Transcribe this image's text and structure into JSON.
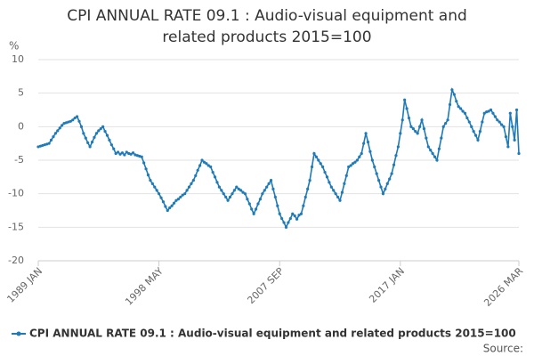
{
  "chart_data": {
    "type": "line",
    "title": "CPI ANNUAL RATE 09.1 : Audio-visual equipment and related products 2015=100",
    "y_label": "%",
    "source": "Source:",
    "legend": "bottom",
    "grid": true,
    "ylim": [
      -20,
      10
    ],
    "yticks": [
      -20,
      -15,
      -10,
      -5,
      0,
      5,
      10
    ],
    "categories": [
      "1989 JAN",
      null,
      null,
      null,
      null,
      null,
      null,
      null,
      null,
      null,
      null,
      null,
      null,
      null,
      null,
      null,
      null,
      null,
      null,
      null,
      null,
      null,
      null,
      null,
      null,
      null,
      null,
      null,
      null,
      null,
      null,
      null,
      null,
      null,
      null,
      null,
      null,
      null,
      null,
      null,
      null,
      null,
      null,
      null,
      null,
      null,
      null,
      null,
      null,
      null,
      null,
      null,
      null,
      null,
      null,
      null,
      "1998 MAY",
      null,
      null,
      null,
      null,
      null,
      null,
      null,
      null,
      null,
      null,
      null,
      null,
      null,
      null,
      null,
      null,
      null,
      null,
      null,
      null,
      null,
      null,
      null,
      null,
      null,
      null,
      null,
      null,
      null,
      null,
      null,
      null,
      null,
      null,
      null,
      null,
      null,
      null,
      null,
      null,
      null,
      null,
      null,
      null,
      null,
      null,
      null,
      null,
      null,
      null,
      null,
      null,
      null,
      null,
      null,
      "2007 SEP",
      null,
      null,
      null,
      null,
      null,
      null,
      null,
      null,
      null,
      null,
      null,
      null,
      null,
      null,
      null,
      null,
      null,
      null,
      null,
      null,
      null,
      null,
      null,
      null,
      null,
      null,
      null,
      null,
      null,
      null,
      null,
      null,
      null,
      null,
      null,
      null,
      null,
      null,
      null,
      null,
      null,
      null,
      null,
      null,
      null,
      null,
      null,
      null,
      null,
      null,
      null,
      null,
      null,
      null,
      null,
      "2017 JAN",
      null,
      null,
      null,
      null,
      null,
      null,
      null,
      null,
      null,
      null,
      null,
      null,
      null,
      null,
      null,
      null,
      null,
      null,
      null,
      null,
      null,
      null,
      null,
      null,
      null,
      null,
      null,
      null,
      null,
      null,
      null,
      null,
      null,
      null,
      null,
      null,
      null,
      null,
      null,
      null,
      null,
      null,
      null,
      null,
      null,
      null,
      null,
      null,
      null,
      null,
      null,
      null,
      null,
      null,
      "2026 MAR"
    ],
    "series": [
      {
        "name": "CPI ANNUAL RATE 09.1 : Audio-visual equipment and related products 2015=100",
        "color": "#1f7ab8",
        "values": [
          -3,
          -2.9,
          -2.8,
          -2.7,
          -2.6,
          -2.5,
          -2.0,
          -1.5,
          -1.0,
          -0.6,
          -0.2,
          0.2,
          0.5,
          0.6,
          0.7,
          0.8,
          1.0,
          1.3,
          1.5,
          0.8,
          0,
          -1.0,
          -1.7,
          -2.4,
          -3.0,
          -2.3,
          -1.6,
          -1.0,
          -0.6,
          -0.3,
          0,
          -0.7,
          -1.3,
          -2.0,
          -2.7,
          -3.3,
          -4.0,
          -3.8,
          -4.1,
          -3.9,
          -4.2,
          -3.8,
          -4.0,
          -4.1,
          -3.9,
          -4.2,
          -4.3,
          -4.4,
          -4.5,
          -5.4,
          -6.3,
          -7.2,
          -8.0,
          -8.5,
          -9.0,
          -9.5,
          -10.0,
          -10.6,
          -11.2,
          -11.9,
          -12.5,
          -12.1,
          -11.8,
          -11.4,
          -11.0,
          -10.8,
          -10.5,
          -10.2,
          -10.0,
          -9.5,
          -9.0,
          -8.5,
          -8.0,
          -7.3,
          -6.5,
          -5.8,
          -5.0,
          -5.3,
          -5.5,
          -5.8,
          -6.0,
          -6.8,
          -7.5,
          -8.3,
          -9.0,
          -9.5,
          -10.0,
          -10.5,
          -11.0,
          -10.5,
          -10.0,
          -9.5,
          -9.0,
          -9.3,
          -9.5,
          -9.8,
          -10.0,
          -10.8,
          -11.5,
          -12.3,
          -13.0,
          -12.3,
          -11.5,
          -10.8,
          -10.0,
          -9.5,
          -9.0,
          -8.5,
          -8.0,
          -9.3,
          -10.5,
          -11.8,
          -13.0,
          -13.7,
          -14.3,
          -15.0,
          -14.3,
          -13.7,
          -13.0,
          -13.3,
          -13.8,
          -13.2,
          -13.0,
          -11.8,
          -10.5,
          -9.3,
          -8.0,
          -6.0,
          -4.0,
          -4.5,
          -5.0,
          -5.5,
          -6.0,
          -6.8,
          -7.5,
          -8.3,
          -9.0,
          -9.5,
          -10.0,
          -10.5,
          -11.0,
          -9.8,
          -8.5,
          -7.3,
          -6.0,
          -5.8,
          -5.5,
          -5.3,
          -5.0,
          -4.5,
          -4.0,
          -2.5,
          -1.0,
          -2.3,
          -3.7,
          -5.0,
          -6.0,
          -7.0,
          -8.0,
          -9.0,
          -10.0,
          -9.3,
          -8.5,
          -7.8,
          -7.0,
          -5.7,
          -4.3,
          -3.0,
          -1.0,
          1.0,
          4.0,
          2.7,
          1.3,
          0,
          -0.3,
          -0.7,
          -1.0,
          0,
          1.0,
          -0.3,
          -1.7,
          -3.0,
          -3.5,
          -4.0,
          -4.5,
          -5.0,
          -3.3,
          -1.7,
          0,
          0.5,
          1.0,
          3.3,
          5.5,
          4.8,
          3.8,
          3.0,
          2.7,
          2.3,
          2.0,
          1.3,
          0.7,
          0,
          -0.7,
          -1.3,
          -2.0,
          -0.7,
          0.7,
          2.0,
          2.2,
          2.3,
          2.5,
          2.0,
          1.5,
          1.0,
          0.7,
          0.3,
          0,
          -1.5,
          -3.0,
          2.0,
          0,
          -2.0,
          2.5,
          -4.0
        ]
      }
    ]
  }
}
